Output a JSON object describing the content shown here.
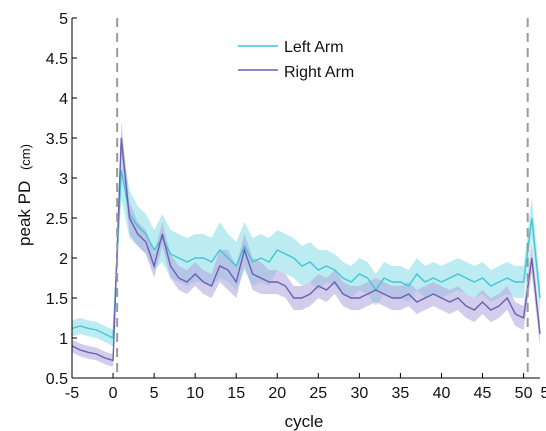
{
  "chart_data": {
    "type": "line",
    "xlabel": "cycle",
    "ylabel_main": "peak PD",
    "ylabel_unit": "(cm)",
    "xlim": [
      -5,
      52
    ],
    "ylim": [
      0.5,
      5
    ],
    "xticks": [
      -5,
      0,
      5,
      10,
      15,
      20,
      25,
      30,
      35,
      40,
      45,
      50
    ],
    "yticks": [
      0.5,
      1,
      1.5,
      2,
      2.5,
      3,
      3.5,
      4,
      4.5,
      5
    ],
    "right_tick_label": "5",
    "vertical_markers": [
      0.5,
      50.5
    ],
    "legend_position": "top-center",
    "series": [
      {
        "name": "Left Arm",
        "color": "#3ec7d6",
        "band_color": "#8fe0e8",
        "x": [
          -5,
          -4,
          -3,
          -2,
          -1,
          0,
          1,
          2,
          3,
          4,
          5,
          6,
          7,
          8,
          9,
          10,
          11,
          12,
          13,
          14,
          15,
          16,
          17,
          18,
          19,
          20,
          21,
          22,
          23,
          24,
          25,
          26,
          27,
          28,
          29,
          30,
          31,
          32,
          33,
          34,
          35,
          36,
          37,
          38,
          39,
          40,
          41,
          42,
          43,
          44,
          45,
          46,
          47,
          48,
          49,
          50,
          51,
          52
        ],
        "y": [
          1.12,
          1.15,
          1.12,
          1.1,
          1.05,
          1.0,
          3.1,
          2.55,
          2.4,
          2.3,
          2.1,
          2.25,
          2.05,
          2.0,
          1.95,
          2.0,
          2.0,
          1.95,
          2.1,
          2.0,
          1.9,
          2.15,
          1.95,
          2.0,
          1.95,
          2.1,
          2.05,
          2.0,
          1.9,
          1.95,
          1.85,
          1.9,
          1.85,
          1.75,
          1.7,
          1.8,
          1.75,
          1.6,
          1.75,
          1.7,
          1.7,
          1.65,
          1.8,
          1.7,
          1.75,
          1.7,
          1.75,
          1.8,
          1.75,
          1.7,
          1.75,
          1.65,
          1.7,
          1.75,
          1.7,
          1.7,
          2.5,
          1.5
        ],
        "band": [
          0.1,
          0.1,
          0.1,
          0.1,
          0.1,
          0.1,
          0.35,
          0.3,
          0.25,
          0.25,
          0.25,
          0.3,
          0.3,
          0.3,
          0.3,
          0.3,
          0.3,
          0.3,
          0.35,
          0.3,
          0.3,
          0.3,
          0.3,
          0.3,
          0.3,
          0.25,
          0.25,
          0.25,
          0.25,
          0.25,
          0.25,
          0.2,
          0.2,
          0.2,
          0.2,
          0.2,
          0.2,
          0.2,
          0.2,
          0.2,
          0.2,
          0.2,
          0.2,
          0.2,
          0.2,
          0.2,
          0.2,
          0.2,
          0.2,
          0.2,
          0.2,
          0.2,
          0.2,
          0.2,
          0.2,
          0.2,
          0.25,
          0.2
        ]
      },
      {
        "name": "Right Arm",
        "color": "#6a5fb5",
        "band_color": "#b2abde",
        "x": [
          -5,
          -4,
          -3,
          -2,
          -1,
          0,
          1,
          2,
          3,
          4,
          5,
          6,
          7,
          8,
          9,
          10,
          11,
          12,
          13,
          14,
          15,
          16,
          17,
          18,
          19,
          20,
          21,
          22,
          23,
          24,
          25,
          26,
          27,
          28,
          29,
          30,
          31,
          32,
          33,
          34,
          35,
          36,
          37,
          38,
          39,
          40,
          41,
          42,
          43,
          44,
          45,
          46,
          47,
          48,
          49,
          50,
          51,
          52
        ],
        "y": [
          0.9,
          0.85,
          0.82,
          0.8,
          0.75,
          0.72,
          3.5,
          2.5,
          2.3,
          2.2,
          1.9,
          2.3,
          1.9,
          1.75,
          1.7,
          1.8,
          1.7,
          1.65,
          1.9,
          1.85,
          1.7,
          2.1,
          1.8,
          1.75,
          1.7,
          1.7,
          1.65,
          1.5,
          1.5,
          1.55,
          1.65,
          1.6,
          1.7,
          1.55,
          1.5,
          1.5,
          1.55,
          1.6,
          1.55,
          1.5,
          1.5,
          1.55,
          1.45,
          1.5,
          1.55,
          1.5,
          1.45,
          1.5,
          1.4,
          1.35,
          1.45,
          1.35,
          1.4,
          1.5,
          1.3,
          1.25,
          2.0,
          1.05
        ],
        "band": [
          0.08,
          0.08,
          0.08,
          0.08,
          0.08,
          0.08,
          0.2,
          0.2,
          0.15,
          0.15,
          0.15,
          0.15,
          0.15,
          0.15,
          0.15,
          0.15,
          0.15,
          0.15,
          0.2,
          0.25,
          0.2,
          0.2,
          0.2,
          0.2,
          0.15,
          0.15,
          0.15,
          0.15,
          0.15,
          0.15,
          0.15,
          0.15,
          0.15,
          0.15,
          0.15,
          0.15,
          0.15,
          0.15,
          0.15,
          0.15,
          0.15,
          0.15,
          0.15,
          0.15,
          0.15,
          0.15,
          0.15,
          0.15,
          0.15,
          0.15,
          0.15,
          0.15,
          0.15,
          0.15,
          0.15,
          0.15,
          0.2,
          0.15
        ]
      }
    ]
  }
}
